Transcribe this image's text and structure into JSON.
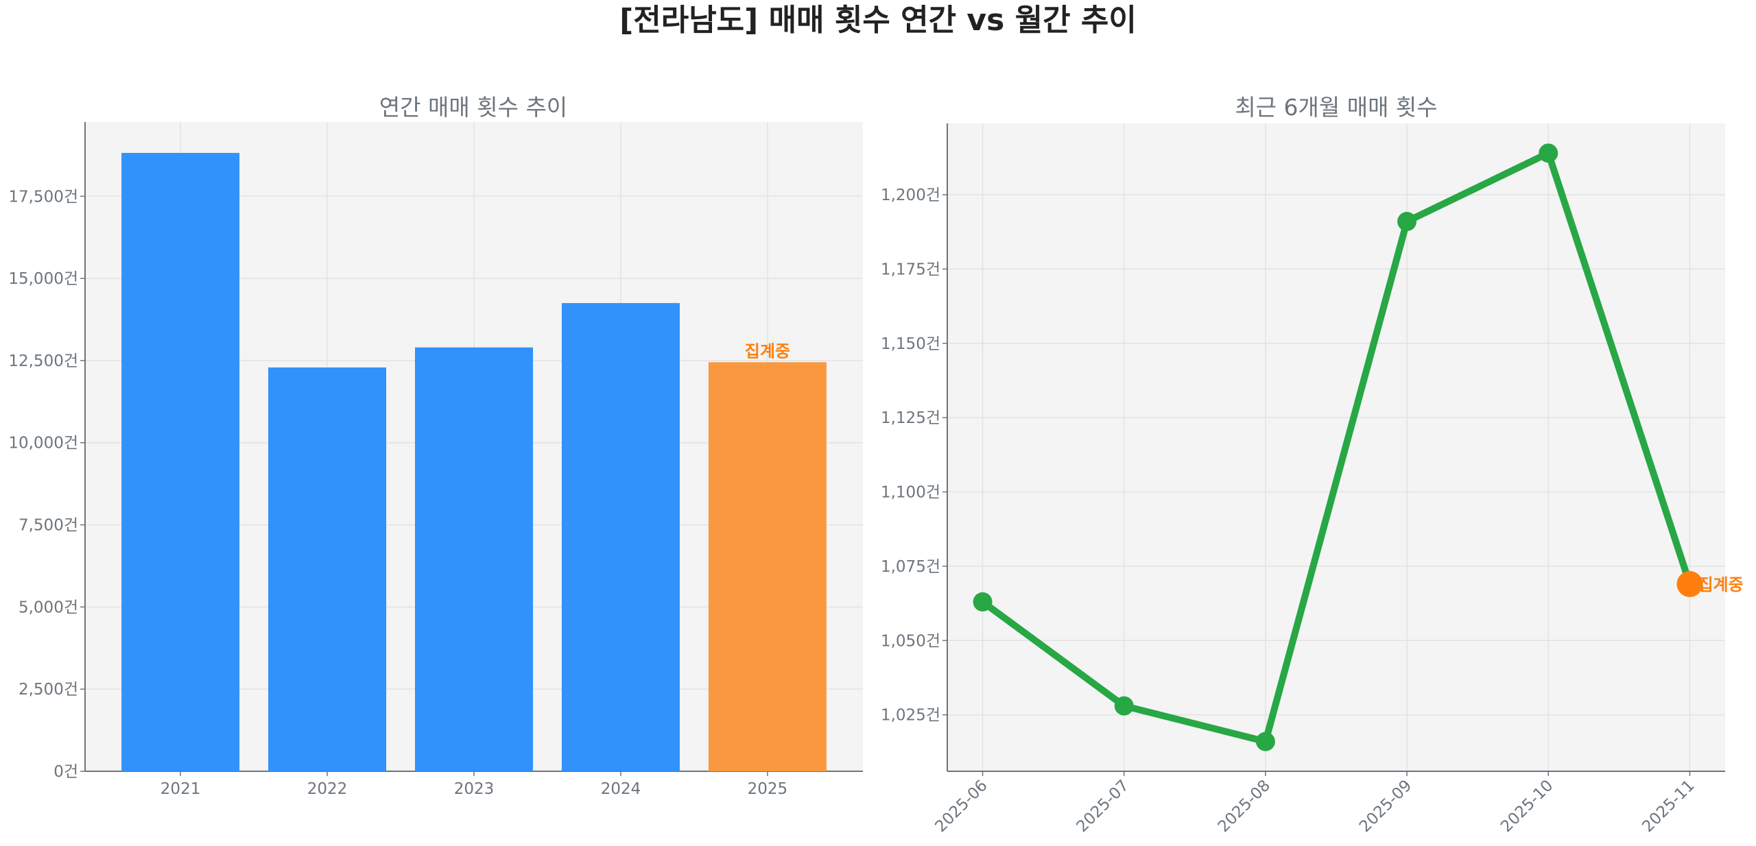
{
  "title": "[전라남도] 매매 횟수 연간 vs 월간 추이",
  "colors": {
    "bar": "#3192FB",
    "bar_partial": "#F99841",
    "line": "#28A745",
    "marker_partial": "#FF7F0E",
    "annotation": "#FF7F0E",
    "plot_bg": "#F4F4F4",
    "text": "#6C757D"
  },
  "chart_data": [
    {
      "type": "bar",
      "title": "연간 매매 횟수 추이",
      "categories": [
        "2021",
        "2022",
        "2023",
        "2024",
        "2025"
      ],
      "values": [
        18820,
        12290,
        12900,
        14250,
        12450
      ],
      "partial_index": 4,
      "annotation": "집계중",
      "ylim": [
        0,
        19760
      ],
      "yticks": [
        0,
        2500,
        5000,
        7500,
        10000,
        12500,
        15000,
        17500
      ],
      "ytick_labels": [
        "0건",
        "2,500건",
        "5,000건",
        "7,500건",
        "10,000건",
        "12,500건",
        "15,000건",
        "17,500건"
      ],
      "grid": true
    },
    {
      "type": "line",
      "title": "최근 6개월 매매 횟수",
      "categories": [
        "2025-06",
        "2025-07",
        "2025-08",
        "2025-09",
        "2025-10",
        "2025-11"
      ],
      "values": [
        1063,
        1028,
        1016,
        1191,
        1214,
        1069
      ],
      "partial_index": 5,
      "annotation": "집계중",
      "ylim": [
        1006,
        1224
      ],
      "yticks": [
        1025,
        1050,
        1075,
        1100,
        1125,
        1150,
        1175,
        1200
      ],
      "ytick_labels": [
        "1,025건",
        "1,050건",
        "1,075건",
        "1,100건",
        "1,125건",
        "1,150건",
        "1,175건",
        "1,200건"
      ],
      "grid": true
    }
  ]
}
